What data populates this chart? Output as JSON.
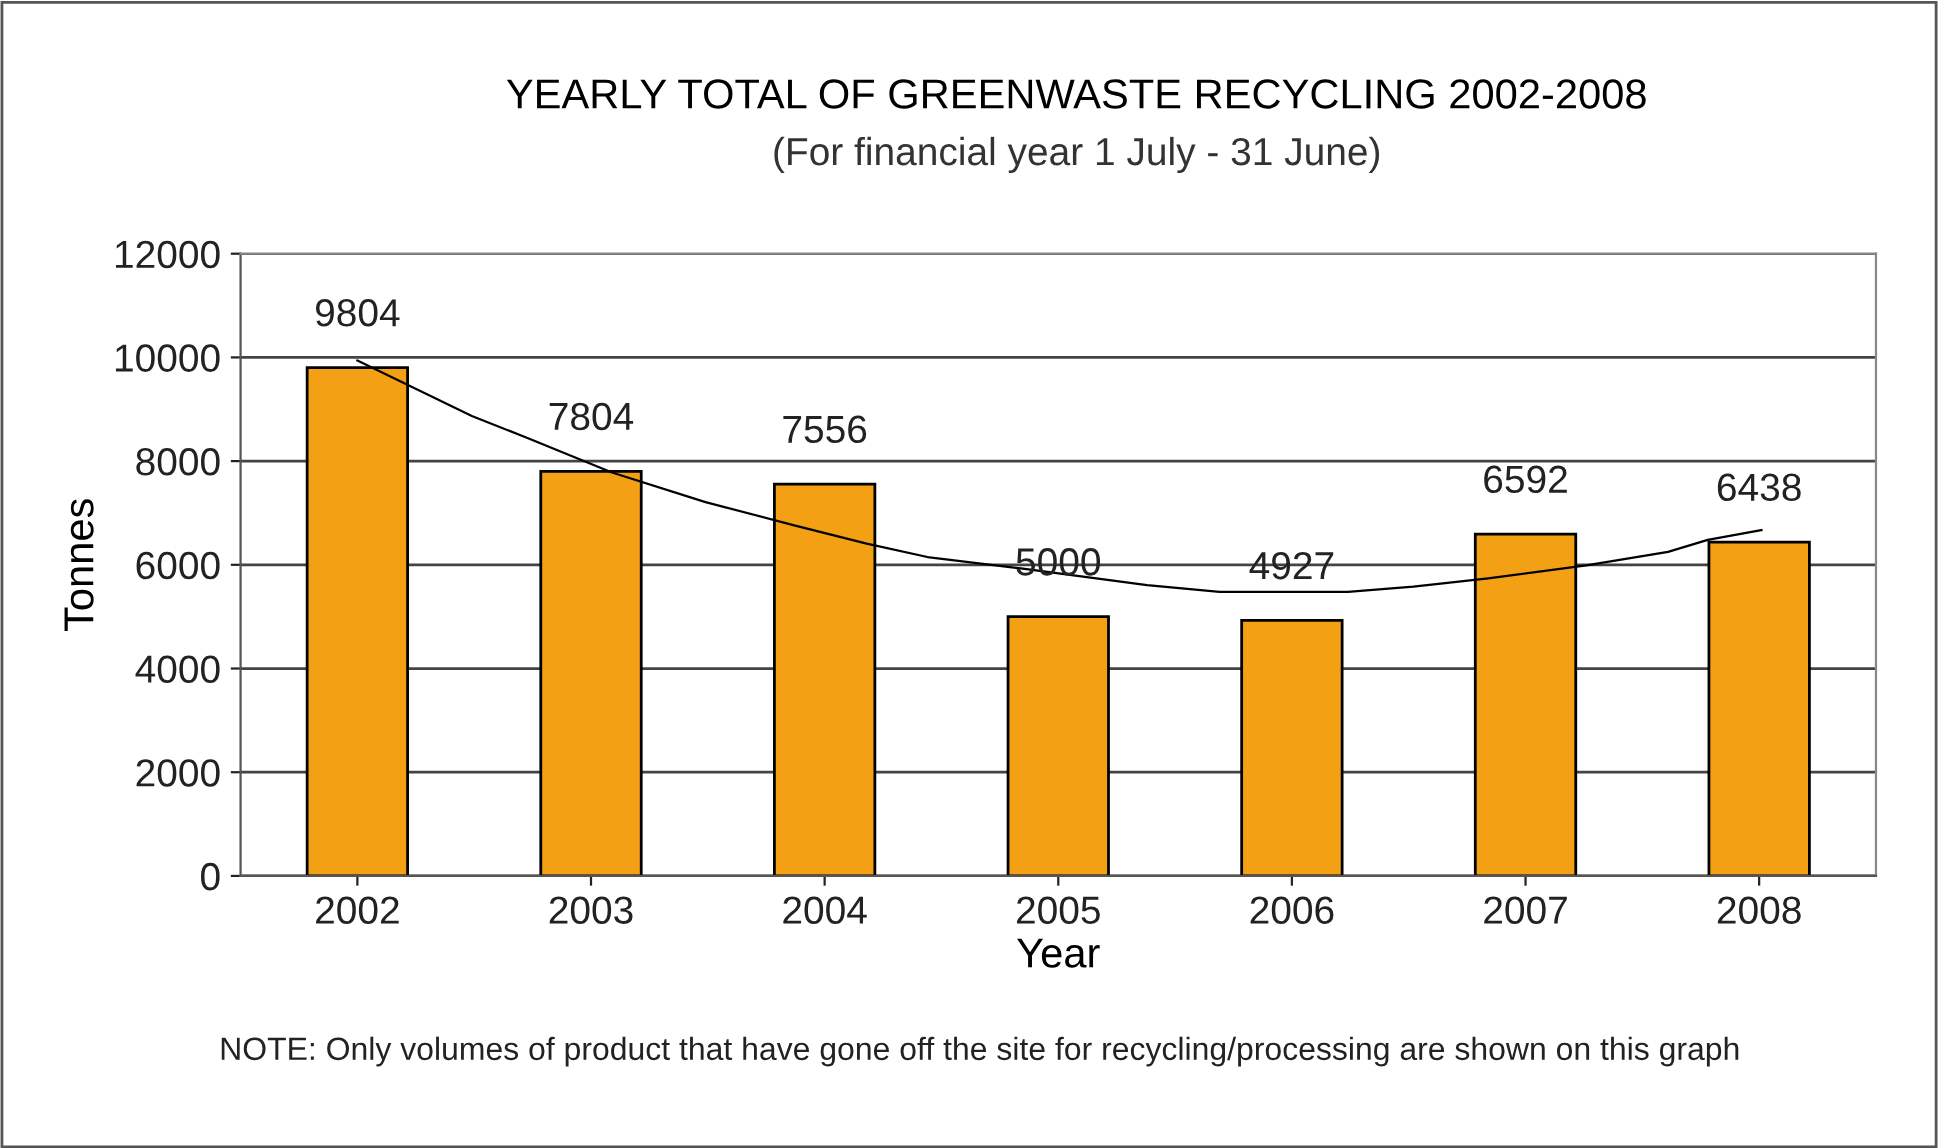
{
  "chart_data": {
    "type": "bar",
    "title": "YEARLY TOTAL OF GREENWASTE RECYCLING 2002-2008",
    "subtitle": "(For financial year 1 July - 31 June)",
    "xlabel": "Year",
    "ylabel": "Tonnes",
    "annotations": [
      "NOTE: Only volumes of product that have gone off the site for recycling/processing are shown on this graph"
    ],
    "x": [
      2002,
      2003,
      2004,
      2005,
      2006,
      2007,
      2008
    ],
    "series": [
      {
        "color": "#f4a015",
        "values": [
          9804,
          7804,
          7556,
          5000,
          4927,
          6592,
          6438
        ],
        "value_labels": [
          "9804",
          "7804",
          "7556",
          "5000",
          "4927",
          "6592",
          "6438"
        ]
      },
      {
        "type": "line",
        "color": "#000000",
        "x": [
          2002.0,
          2002.49,
          2002.72,
          2003.09,
          2003.49,
          2003.87,
          2004.18,
          2004.44,
          2004.84,
          2005.38,
          2005.69,
          2006.24,
          2006.52,
          2006.84,
          2007.26,
          2007.61,
          2007.78,
          2008.01
        ],
        "values": [
          9940,
          8870,
          8460,
          7780,
          7210,
          6760,
          6410,
          6150,
          5930,
          5610,
          5480,
          5480,
          5580,
          5740,
          5990,
          6250,
          6480,
          6670
        ]
      }
    ],
    "xlim": [
      2001.5,
      2008.5
    ],
    "xticks": [
      2002,
      2003,
      2004,
      2005,
      2006,
      2007,
      2008
    ],
    "ylim": [
      0,
      12000
    ],
    "yticks": [
      0,
      2000,
      4000,
      6000,
      8000,
      10000,
      12000
    ],
    "grid": "y",
    "legend": false
  }
}
